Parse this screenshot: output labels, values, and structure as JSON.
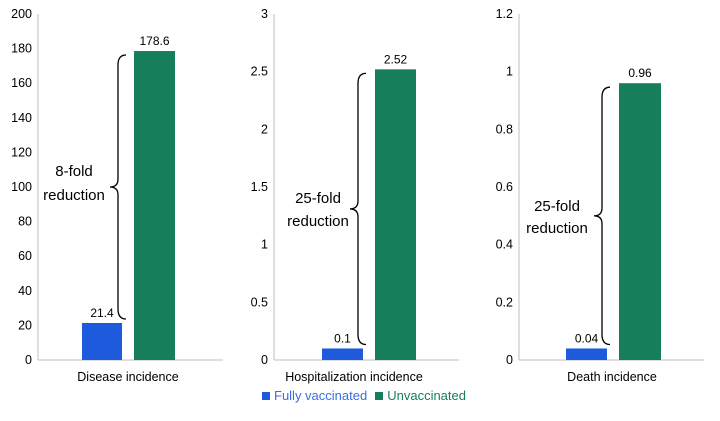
{
  "colors": {
    "vaccinated": "#1d5bdc",
    "unvaccinated": "#167e5a",
    "vaccinated_text": "#3a6fe0",
    "unvaccinated_text": "#167e5a"
  },
  "legend": {
    "vaccinated": "Fully vaccinated",
    "unvaccinated": "Unvaccinated"
  },
  "chart_data": [
    {
      "type": "bar",
      "xlabel": "Disease incidence",
      "ylim": [
        0,
        200
      ],
      "yticks": [
        0,
        20,
        40,
        60,
        80,
        100,
        120,
        140,
        160,
        180,
        200
      ],
      "yticklabels": [
        "0",
        "20",
        "40",
        "60",
        "80",
        "100",
        "120",
        "140",
        "160",
        "180",
        "200"
      ],
      "series": [
        {
          "name": "Fully vaccinated",
          "values": [
            21.4
          ],
          "labels": [
            "21.4"
          ]
        },
        {
          "name": "Unvaccinated",
          "values": [
            178.6
          ],
          "labels": [
            "178.6"
          ]
        }
      ],
      "annotation": [
        "8-fold",
        "reduction"
      ]
    },
    {
      "type": "bar",
      "xlabel": "Hospitalization incidence",
      "ylim": [
        0,
        3
      ],
      "yticks": [
        0,
        0.5,
        1,
        1.5,
        2,
        2.5,
        3
      ],
      "yticklabels": [
        "0",
        "0.5",
        "1",
        "1.5",
        "2",
        "2.5",
        "3"
      ],
      "series": [
        {
          "name": "Fully vaccinated",
          "values": [
            0.1
          ],
          "labels": [
            "0.1"
          ]
        },
        {
          "name": "Unvaccinated",
          "values": [
            2.52
          ],
          "labels": [
            "2.52"
          ]
        }
      ],
      "annotation": [
        "25-fold",
        "reduction"
      ]
    },
    {
      "type": "bar",
      "xlabel": "Death incidence",
      "ylim": [
        0,
        1.2
      ],
      "yticks": [
        0,
        0.2,
        0.4,
        0.6,
        0.8,
        1,
        1.2
      ],
      "yticklabels": [
        "0",
        "0.2",
        "0.4",
        "0.6",
        "0.8",
        "1",
        "1.2"
      ],
      "series": [
        {
          "name": "Fully vaccinated",
          "values": [
            0.04
          ],
          "labels": [
            "0.04"
          ]
        },
        {
          "name": "Unvaccinated",
          "values": [
            0.96
          ],
          "labels": [
            "0.96"
          ]
        }
      ],
      "annotation": [
        "25-fold",
        "reduction"
      ]
    }
  ]
}
